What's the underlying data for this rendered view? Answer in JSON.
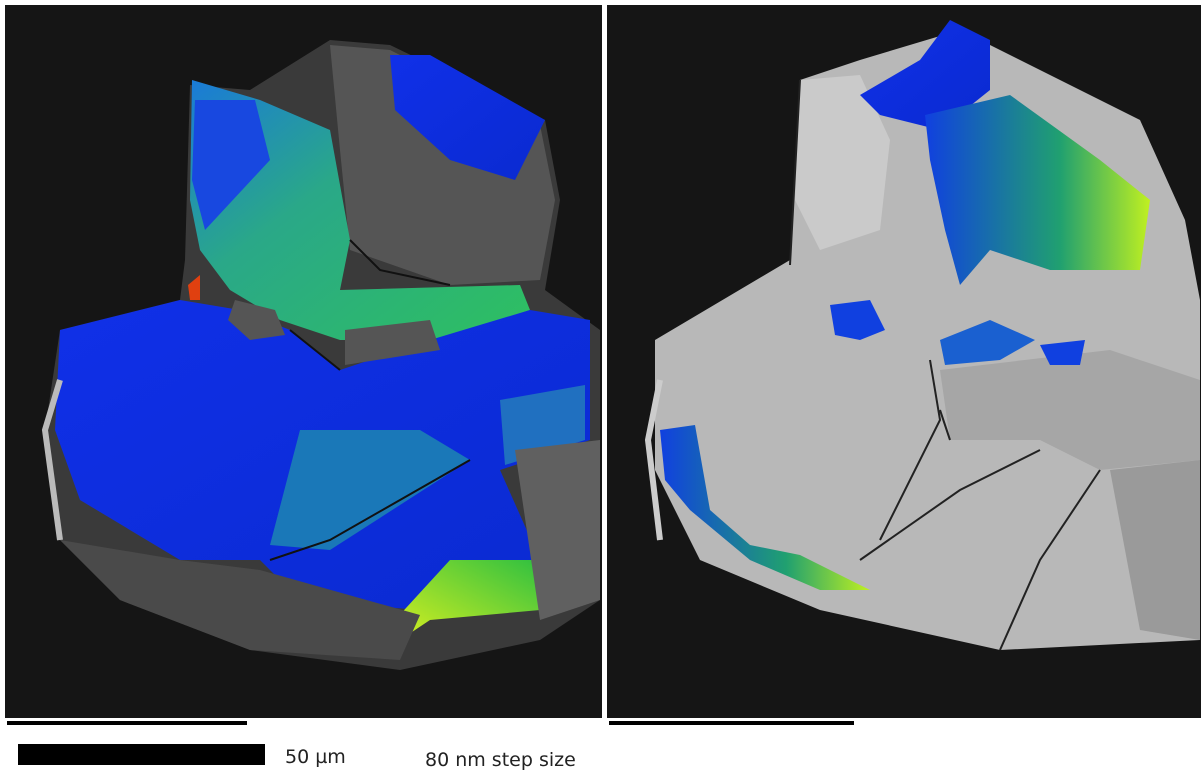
{
  "scale_bar": {
    "label": "50 µm"
  },
  "step_size": "80 nm step size"
}
